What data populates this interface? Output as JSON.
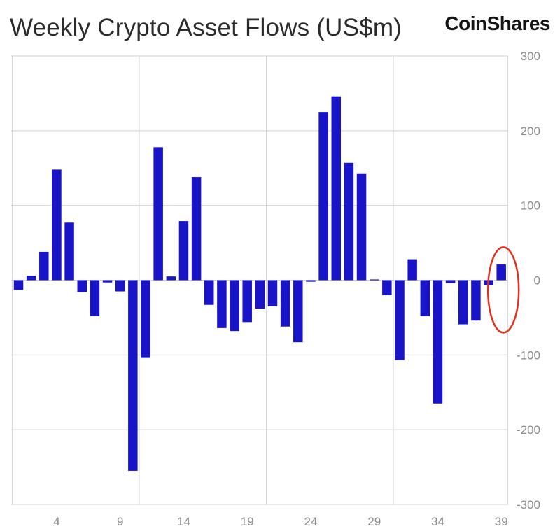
{
  "title": "Weekly Crypto Asset Flows (US$m)",
  "brand": "CoinShares",
  "colors": {
    "bar": "#1a14c8",
    "grid": "#d2d2d8",
    "highlight": "#e0301e"
  },
  "chart_data": {
    "type": "bar",
    "title": "Weekly Crypto Asset Flows (US$m)",
    "xlabel": "",
    "ylabel": "US$m",
    "ylim": [
      -300,
      300
    ],
    "yticks": [
      300,
      200,
      100,
      0,
      -100,
      -200,
      -300
    ],
    "ytick_labels": [
      "300",
      "200",
      "100",
      "0",
      "-100",
      "-200",
      "-300"
    ],
    "xticks": [
      4,
      9,
      14,
      19,
      24,
      29,
      34,
      39
    ],
    "xtick_labels": [
      "4",
      "9",
      "14",
      "19",
      "24",
      "29",
      "34",
      "39"
    ],
    "categories": [
      1,
      2,
      3,
      4,
      5,
      6,
      7,
      8,
      9,
      10,
      11,
      12,
      13,
      14,
      15,
      16,
      17,
      18,
      19,
      20,
      21,
      22,
      23,
      24,
      25,
      26,
      27,
      28,
      29,
      30,
      31,
      32,
      33,
      34,
      35,
      36,
      37,
      38,
      39
    ],
    "values": [
      -13,
      6,
      38,
      148,
      77,
      -16,
      -48,
      -3,
      -15,
      -255,
      -104,
      178,
      5,
      79,
      138,
      -33,
      -64,
      -68,
      -56,
      -38,
      -35,
      -62,
      -83,
      -2,
      225,
      246,
      157,
      143,
      1,
      -20,
      -107,
      28,
      -48,
      -165,
      -4,
      -59,
      -54,
      -7,
      21
    ],
    "grid": true,
    "annotation": "red circle highlighting week 39"
  }
}
